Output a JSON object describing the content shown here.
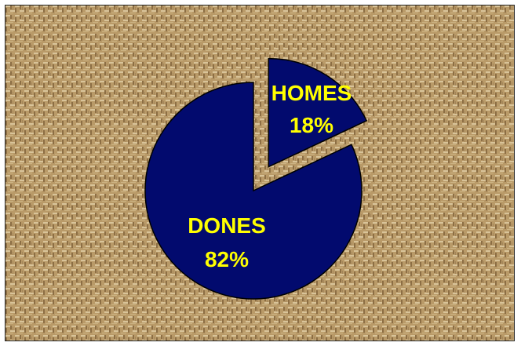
{
  "colors": {
    "slice_fill": "#020a6e",
    "slice_stroke": "#000000",
    "label_color": "#ffff00",
    "background_base": "#b99a68"
  },
  "chart_data": {
    "type": "pie",
    "title": "",
    "legend": "none",
    "start_angle_deg": 0,
    "exploded": [
      "HOMES"
    ],
    "slices": [
      {
        "name": "HOMES",
        "value": 18,
        "label": "HOMES",
        "percent_label": "18%"
      },
      {
        "name": "DONES",
        "value": 82,
        "label": "DONES",
        "percent_label": "82%"
      }
    ]
  }
}
